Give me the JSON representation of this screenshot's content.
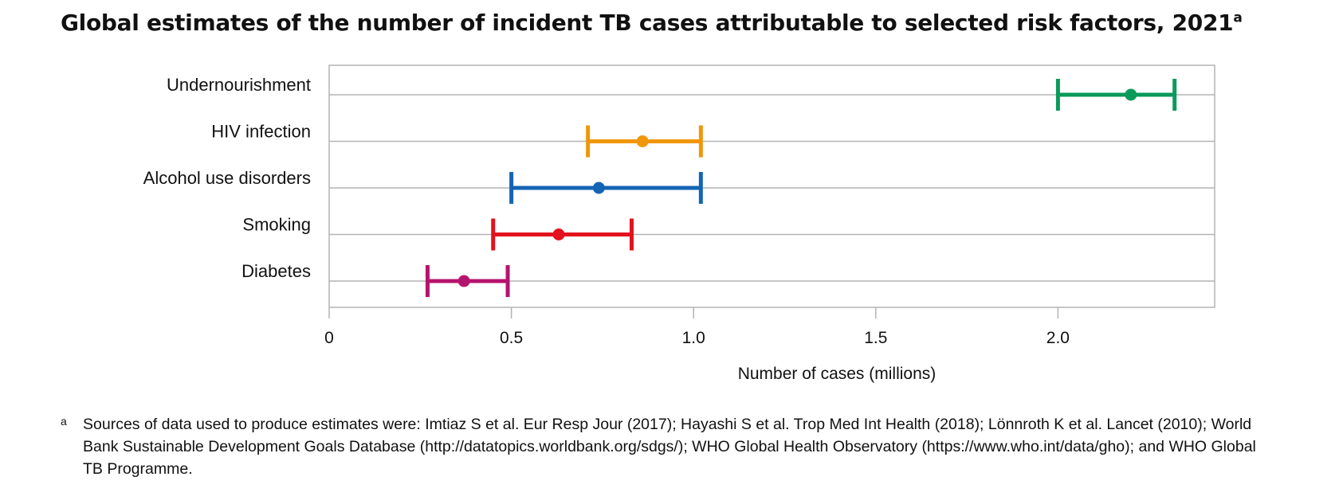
{
  "title": "Global estimates of the number of incident TB cases attributable to selected risk factors, 2021",
  "title_superscript": "a",
  "chart_data": {
    "type": "scatter",
    "subtype": "point-with-error-bars",
    "categories": [
      "Undernourishment",
      "HIV infection",
      "Alcohol use disorders",
      "Smoking",
      "Diabetes"
    ],
    "series": [
      {
        "points": [
          {
            "category": "Undernourishment",
            "best": 2.2,
            "low": 2.0,
            "high": 2.32,
            "color": "#0a9a5a"
          },
          {
            "category": "HIV infection",
            "best": 0.86,
            "low": 0.71,
            "high": 1.02,
            "color": "#f0960a"
          },
          {
            "category": "Alcohol use disorders",
            "best": 0.74,
            "low": 0.5,
            "high": 1.02,
            "color": "#1464b4"
          },
          {
            "category": "Smoking",
            "best": 0.63,
            "low": 0.45,
            "high": 0.83,
            "color": "#e2121e"
          },
          {
            "category": "Diabetes",
            "best": 0.37,
            "low": 0.27,
            "high": 0.49,
            "color": "#b4146e"
          }
        ]
      }
    ],
    "xlabel": "Number of cases (millions)",
    "ylabel": "",
    "xlim": [
      0,
      2.43
    ],
    "xticks": [
      0,
      0.5,
      1.0,
      1.5,
      2.0
    ],
    "xtick_labels": [
      "0",
      "0.5",
      "1.0",
      "1.5",
      "2.0"
    ],
    "grid": "horizontal",
    "gridline_color": "#b4b4b4"
  },
  "footnote": {
    "marker": "a",
    "text": "Sources of data used to produce estimates were: Imtiaz S et al. Eur Resp Jour (2017); Hayashi S et al. Trop Med Int Health (2018); Lönnroth K et al. Lancet (2010); World Bank Sustainable Development Goals Database (http://datatopics.worldbank.org/sdgs/); WHO Global Health Observatory (https://www.who.int/data/gho); and WHO Global TB Programme."
  }
}
